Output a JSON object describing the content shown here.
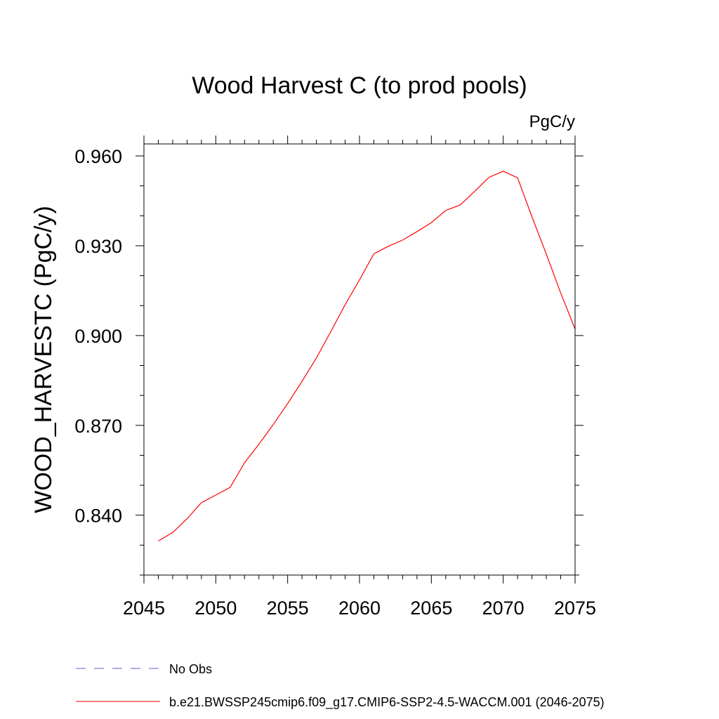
{
  "chart_data": {
    "type": "line",
    "title": "Wood Harvest C (to prod pools)",
    "units": "PgC/y",
    "xlabel": "",
    "ylabel": "WOOD_HARVESTC  (PgC/y)",
    "xlim": [
      2045,
      2075
    ],
    "ylim": [
      0.82,
      0.964
    ],
    "x_ticks": [
      2045,
      2050,
      2055,
      2060,
      2065,
      2070,
      2075
    ],
    "x_tick_labels": [
      "2045",
      "2050",
      "2055",
      "2060",
      "2065",
      "2070",
      "2075"
    ],
    "y_ticks": [
      0.84,
      0.87,
      0.9,
      0.93,
      0.96
    ],
    "y_tick_labels": [
      "0.840",
      "0.870",
      "0.900",
      "0.930",
      "0.960"
    ],
    "grid": false,
    "legend_position": "bottom-left",
    "series": [
      {
        "name": "No Obs",
        "color": "#6a5acd",
        "dash": "dashed",
        "x": [],
        "values": []
      },
      {
        "name": "b.e21.BWSSP245cmip6.f09_g17.CMIP6-SSP2-4.5-WACCM.001 (2046-2075)",
        "color": "#ff0000",
        "dash": "solid",
        "x": [
          2046,
          2047,
          2048,
          2049,
          2050,
          2051,
          2052,
          2053,
          2054,
          2055,
          2056,
          2057,
          2058,
          2059,
          2060,
          2061,
          2062,
          2063,
          2064,
          2065,
          2066,
          2067,
          2068,
          2069,
          2070,
          2071,
          2072,
          2073,
          2074,
          2075
        ],
        "values": [
          0.8314,
          0.8342,
          0.8388,
          0.8442,
          0.8467,
          0.8493,
          0.8575,
          0.8637,
          0.8703,
          0.8773,
          0.8847,
          0.8925,
          0.9013,
          0.9103,
          0.9186,
          0.9273,
          0.9298,
          0.9319,
          0.9347,
          0.9377,
          0.9418,
          0.9436,
          0.9481,
          0.9528,
          0.9549,
          0.9527,
          0.9397,
          0.9272,
          0.9142,
          0.9022
        ]
      }
    ]
  }
}
